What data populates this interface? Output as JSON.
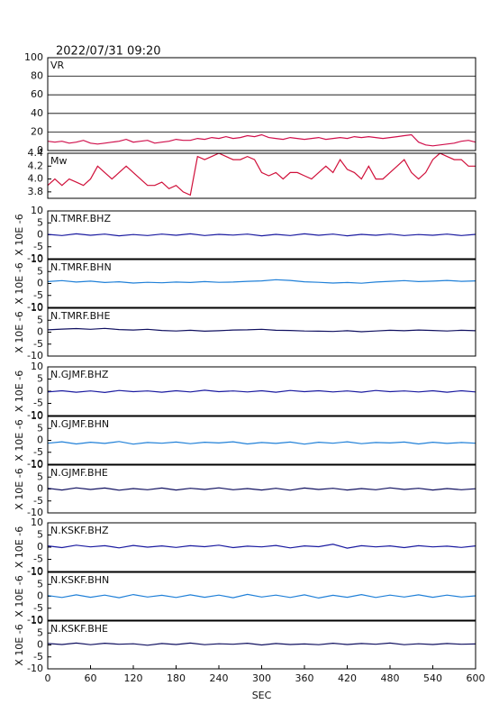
{
  "chart_data": [
    {
      "type": "line",
      "title": "2022/07/31 09:20",
      "panel_label": "VR",
      "grid": true,
      "xlim": [
        0,
        600
      ],
      "ylim": [
        0,
        100
      ],
      "yticks": [
        0,
        20,
        40,
        60,
        80,
        100
      ],
      "x": [
        0,
        10,
        20,
        30,
        40,
        50,
        60,
        70,
        80,
        90,
        100,
        110,
        120,
        130,
        140,
        150,
        160,
        170,
        180,
        190,
        200,
        210,
        220,
        230,
        240,
        250,
        260,
        270,
        280,
        290,
        300,
        310,
        320,
        330,
        340,
        350,
        360,
        370,
        380,
        390,
        400,
        410,
        420,
        430,
        440,
        450,
        460,
        470,
        480,
        490,
        500,
        510,
        520,
        530,
        540,
        550,
        560,
        570,
        580,
        590,
        600
      ],
      "series": [
        {
          "color": "#d0104c",
          "values": [
            10,
            9,
            10,
            8,
            9,
            11,
            8,
            7,
            8,
            9,
            10,
            12,
            9,
            10,
            11,
            8,
            9,
            10,
            12,
            11,
            11,
            13,
            12,
            14,
            13,
            15,
            13,
            14,
            16,
            15,
            17,
            14,
            13,
            12,
            14,
            13,
            12,
            13,
            14,
            12,
            13,
            14,
            13,
            15,
            14,
            15,
            14,
            13,
            14,
            15,
            16,
            17,
            9,
            6,
            5,
            6,
            7,
            8,
            10,
            11,
            9
          ]
        }
      ]
    },
    {
      "type": "line",
      "panel_label": "Mw",
      "grid": false,
      "xlim": [
        0,
        600
      ],
      "ylim": [
        3.7,
        4.4
      ],
      "yticks": [
        3.8,
        {
          "value": 4,
          "label": "4.0"
        },
        4.2,
        4.4
      ],
      "x": [
        0,
        10,
        20,
        30,
        40,
        50,
        60,
        70,
        80,
        90,
        100,
        110,
        120,
        130,
        140,
        150,
        160,
        170,
        180,
        190,
        200,
        210,
        220,
        230,
        240,
        250,
        260,
        270,
        280,
        290,
        300,
        310,
        320,
        330,
        340,
        350,
        360,
        370,
        380,
        390,
        400,
        410,
        420,
        430,
        440,
        450,
        460,
        470,
        480,
        490,
        500,
        510,
        520,
        530,
        540,
        550,
        560,
        570,
        580,
        590,
        600
      ],
      "series": [
        {
          "color": "#d0103a",
          "values": [
            3.9,
            4.0,
            3.9,
            4.0,
            3.95,
            3.9,
            4.0,
            4.2,
            4.1,
            4.0,
            4.1,
            4.2,
            4.1,
            4.0,
            3.9,
            3.9,
            3.95,
            3.85,
            3.9,
            3.8,
            3.75,
            4.35,
            4.3,
            4.35,
            4.4,
            4.35,
            4.3,
            4.3,
            4.35,
            4.3,
            4.1,
            4.05,
            4.1,
            4.0,
            4.1,
            4.1,
            4.05,
            4.0,
            4.1,
            4.2,
            4.1,
            4.3,
            4.15,
            4.1,
            4.0,
            4.2,
            4.0,
            4.0,
            4.1,
            4.2,
            4.3,
            4.1,
            4.0,
            4.1,
            4.3,
            4.4,
            4.35,
            4.3,
            4.3,
            4.2,
            4.2
          ]
        }
      ]
    },
    {
      "type": "line",
      "panel_label": "N.TMRF.BHZ",
      "ylabel": "X 10E -6",
      "xlim": [
        0,
        600
      ],
      "ylim": [
        -10,
        10
      ],
      "yticks": [
        -10,
        -5,
        0,
        5,
        10
      ],
      "x": [
        0,
        20,
        40,
        60,
        80,
        100,
        120,
        140,
        160,
        180,
        200,
        220,
        240,
        260,
        280,
        300,
        320,
        340,
        360,
        380,
        400,
        420,
        440,
        460,
        480,
        500,
        520,
        540,
        560,
        580,
        600
      ],
      "series": [
        {
          "color": "#1a1aa0",
          "values": [
            0.2,
            -0.3,
            0.4,
            -0.2,
            0.3,
            -0.4,
            0.1,
            -0.3,
            0.3,
            -0.2,
            0.4,
            -0.3,
            0.2,
            -0.1,
            0.3,
            -0.4,
            0.2,
            -0.3,
            0.4,
            -0.2,
            0.3,
            -0.4,
            0.2,
            -0.2,
            0.3,
            -0.3,
            0.1,
            -0.2,
            0.3,
            -0.3,
            0.2
          ]
        }
      ]
    },
    {
      "type": "line",
      "panel_label": "N.TMRF.BHN",
      "ylabel": "X 10E -6",
      "xlim": [
        0,
        600
      ],
      "ylim": [
        -10,
        10
      ],
      "yticks": [
        -10,
        -5,
        0,
        5,
        10
      ],
      "x": [
        0,
        20,
        40,
        60,
        80,
        100,
        120,
        140,
        160,
        180,
        200,
        220,
        240,
        260,
        280,
        300,
        320,
        340,
        360,
        380,
        400,
        420,
        440,
        460,
        480,
        500,
        520,
        540,
        560,
        580,
        600
      ],
      "series": [
        {
          "color": "#2080d8",
          "values": [
            0.8,
            1.2,
            0.6,
            1.0,
            0.4,
            0.7,
            0.2,
            0.5,
            0.3,
            0.6,
            0.4,
            0.8,
            0.5,
            0.6,
            0.9,
            1.1,
            1.6,
            1.3,
            0.7,
            0.5,
            0.2,
            0.4,
            0.1,
            0.6,
            0.9,
            1.2,
            0.8,
            1.0,
            1.3,
            0.9,
            1.1
          ]
        }
      ]
    },
    {
      "type": "line",
      "panel_label": "N.TMRF.BHE",
      "ylabel": "X 10E -6",
      "xlim": [
        0,
        600
      ],
      "ylim": [
        -10,
        10
      ],
      "yticks": [
        -10,
        -5,
        0,
        5,
        10
      ],
      "x": [
        0,
        20,
        40,
        60,
        80,
        100,
        120,
        140,
        160,
        180,
        200,
        220,
        240,
        260,
        280,
        300,
        320,
        340,
        360,
        380,
        400,
        420,
        440,
        460,
        480,
        500,
        520,
        540,
        560,
        580,
        600
      ],
      "series": [
        {
          "color": "#101060",
          "values": [
            1.0,
            1.3,
            1.5,
            1.2,
            1.6,
            1.1,
            0.9,
            1.2,
            0.7,
            0.5,
            0.8,
            0.4,
            0.6,
            0.9,
            1.0,
            1.2,
            0.8,
            0.7,
            0.5,
            0.4,
            0.3,
            0.6,
            0.2,
            0.5,
            0.8,
            0.6,
            0.9,
            0.7,
            0.5,
            0.8,
            0.6
          ]
        }
      ]
    },
    {
      "type": "line",
      "panel_label": "N.GJMF.BHZ",
      "ylabel": "X 10E -6",
      "xlim": [
        0,
        600
      ],
      "ylim": [
        -10,
        10
      ],
      "yticks": [
        -10,
        -5,
        0,
        5,
        10
      ],
      "x": [
        0,
        20,
        40,
        60,
        80,
        100,
        120,
        140,
        160,
        180,
        200,
        220,
        240,
        260,
        280,
        300,
        320,
        340,
        360,
        380,
        400,
        420,
        440,
        460,
        480,
        500,
        520,
        540,
        560,
        580,
        600
      ],
      "series": [
        {
          "color": "#1a1aa0",
          "values": [
            -0.3,
            0.2,
            -0.4,
            0.1,
            -0.5,
            0.3,
            -0.2,
            0.1,
            -0.4,
            0.2,
            -0.3,
            0.4,
            -0.2,
            0.1,
            -0.3,
            0.2,
            -0.4,
            0.3,
            -0.2,
            0.2,
            -0.3,
            0.1,
            -0.4,
            0.3,
            -0.2,
            0.1,
            -0.3,
            0.2,
            -0.4,
            0.2,
            -0.3
          ]
        }
      ]
    },
    {
      "type": "line",
      "panel_label": "N.GJMF.BHN",
      "ylabel": "X 10E -6",
      "xlim": [
        0,
        600
      ],
      "ylim": [
        -10,
        10
      ],
      "yticks": [
        -10,
        -5,
        0,
        5,
        10
      ],
      "x": [
        0,
        20,
        40,
        60,
        80,
        100,
        120,
        140,
        160,
        180,
        200,
        220,
        240,
        260,
        280,
        300,
        320,
        340,
        360,
        380,
        400,
        420,
        440,
        460,
        480,
        500,
        520,
        540,
        560,
        580,
        600
      ],
      "series": [
        {
          "color": "#2080d8",
          "values": [
            -1.2,
            -0.6,
            -1.5,
            -0.8,
            -1.3,
            -0.5,
            -1.6,
            -0.9,
            -1.2,
            -0.7,
            -1.4,
            -0.8,
            -1.1,
            -0.6,
            -1.5,
            -0.9,
            -1.3,
            -0.7,
            -1.6,
            -0.8,
            -1.2,
            -0.6,
            -1.4,
            -0.9,
            -1.1,
            -0.7,
            -1.5,
            -0.8,
            -1.3,
            -0.9,
            -1.2
          ]
        }
      ]
    },
    {
      "type": "line",
      "panel_label": "N.GJMF.BHE",
      "ylabel": "X 10E -6",
      "xlim": [
        0,
        600
      ],
      "ylim": [
        -10,
        10
      ],
      "yticks": [
        -10,
        -5,
        0,
        5,
        10
      ],
      "x": [
        0,
        20,
        40,
        60,
        80,
        100,
        120,
        140,
        160,
        180,
        200,
        220,
        240,
        260,
        280,
        300,
        320,
        340,
        360,
        380,
        400,
        420,
        440,
        460,
        480,
        500,
        520,
        540,
        560,
        580,
        600
      ],
      "series": [
        {
          "color": "#101060",
          "values": [
            0.3,
            -0.4,
            0.5,
            -0.2,
            0.4,
            -0.5,
            0.2,
            -0.3,
            0.4,
            -0.4,
            0.3,
            -0.2,
            0.5,
            -0.3,
            0.2,
            -0.4,
            0.3,
            -0.5,
            0.4,
            -0.2,
            0.3,
            -0.4,
            0.2,
            -0.3,
            0.5,
            -0.2,
            0.3,
            -0.4,
            0.2,
            -0.3,
            0.1
          ]
        }
      ]
    },
    {
      "type": "line",
      "panel_label": "N.KSKF.BHZ",
      "ylabel": "X 10E -6",
      "xlim": [
        0,
        600
      ],
      "ylim": [
        -10,
        10
      ],
      "yticks": [
        -10,
        -5,
        0,
        5,
        10
      ],
      "x": [
        0,
        20,
        40,
        60,
        80,
        100,
        120,
        140,
        160,
        180,
        200,
        220,
        240,
        260,
        280,
        300,
        320,
        340,
        360,
        380,
        400,
        420,
        440,
        460,
        480,
        500,
        520,
        540,
        560,
        580,
        600
      ],
      "series": [
        {
          "color": "#1a1aa0",
          "values": [
            0.5,
            -0.2,
            0.8,
            0.1,
            0.6,
            -0.3,
            0.7,
            0,
            0.5,
            -0.1,
            0.6,
            0.2,
            0.8,
            -0.2,
            0.4,
            0.1,
            0.7,
            -0.3,
            0.5,
            0.2,
            1.2,
            -0.4,
            0.6,
            0.1,
            0.5,
            -0.2,
            0.6,
            0.1,
            0.4,
            -0.1,
            0.5
          ]
        }
      ]
    },
    {
      "type": "line",
      "panel_label": "N.KSKF.BHN",
      "ylabel": "X 10E -6",
      "xlim": [
        0,
        600
      ],
      "ylim": [
        -10,
        10
      ],
      "yticks": [
        -10,
        -5,
        0,
        5,
        10
      ],
      "x": [
        0,
        20,
        40,
        60,
        80,
        100,
        120,
        140,
        160,
        180,
        200,
        220,
        240,
        260,
        280,
        300,
        320,
        340,
        360,
        380,
        400,
        420,
        440,
        460,
        480,
        500,
        520,
        540,
        560,
        580,
        600
      ],
      "series": [
        {
          "color": "#2080d8",
          "values": [
            0.3,
            -0.5,
            0.6,
            -0.4,
            0.5,
            -0.6,
            0.7,
            -0.3,
            0.4,
            -0.5,
            0.6,
            -0.4,
            0.5,
            -0.6,
            0.8,
            -0.3,
            0.5,
            -0.5,
            0.6,
            -0.7,
            0.4,
            -0.4,
            0.7,
            -0.5,
            0.5,
            -0.3,
            0.6,
            -0.4,
            0.5,
            -0.3,
            0.2
          ]
        }
      ]
    },
    {
      "type": "line",
      "panel_label": "N.KSKF.BHE",
      "ylabel": "X 10E -6",
      "xlabel": "SEC",
      "xlim": [
        0,
        600
      ],
      "xticks": [
        0,
        60,
        120,
        180,
        240,
        300,
        360,
        420,
        480,
        540,
        600
      ],
      "ylim": [
        -10,
        10
      ],
      "yticks": [
        -10,
        -5,
        0,
        5,
        10
      ],
      "x": [
        0,
        20,
        40,
        60,
        80,
        100,
        120,
        140,
        160,
        180,
        200,
        220,
        240,
        260,
        280,
        300,
        320,
        340,
        360,
        380,
        400,
        420,
        440,
        460,
        480,
        500,
        520,
        540,
        560,
        580,
        600
      ],
      "series": [
        {
          "color": "#101060",
          "values": [
            0.6,
            0.2,
            0.8,
            0.1,
            0.7,
            0.3,
            0.5,
            -0.1,
            0.6,
            0.2,
            0.8,
            0.1,
            0.5,
            0.3,
            0.7,
            0,
            0.6,
            0.2,
            0.4,
            0.1,
            0.7,
            0.2,
            0.6,
            0.3,
            0.8,
            0.1,
            0.5,
            0.2,
            0.6,
            0.3,
            0.4
          ]
        }
      ]
    }
  ]
}
